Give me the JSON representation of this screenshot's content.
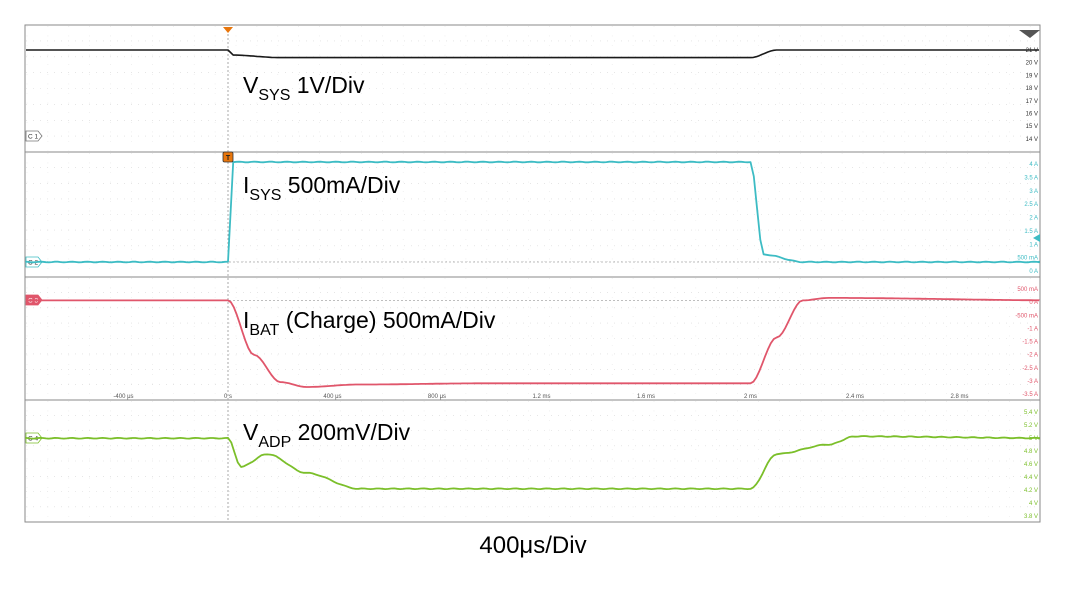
{
  "timebase_label": "400μs/Div",
  "colors": {
    "c1": "#1a1a1a",
    "c2": "#3dbcc4",
    "c3": "#e0566b",
    "c4": "#7bbf2a",
    "trigger": "#e8760c",
    "grid": "#d8d8d8",
    "frame": "#8a8a8a"
  },
  "chart_data": [
    {
      "type": "line",
      "channel": "C1",
      "label": {
        "main": "V",
        "sub": "SYS",
        "rest": " 1V/Div"
      },
      "scale_labels": [
        "21 V",
        "20 V",
        "19 V",
        "18 V",
        "17 V",
        "16 V",
        "15 V",
        "14 V"
      ],
      "x": [
        "-0.8 ms",
        "0 s",
        "0.02 ms",
        "0.2 ms",
        "1.0 ms",
        "2.0 ms",
        "2.1 ms",
        "3.2 ms"
      ],
      "series": [
        {
          "values": [
            21.0,
            21.0,
            20.6,
            20.4,
            20.4,
            20.4,
            21.0,
            21.0
          ]
        }
      ]
    },
    {
      "type": "line",
      "channel": "C2",
      "label": {
        "main": "I",
        "sub": "SYS",
        "rest": " 500mA/Div"
      },
      "scale_labels": [
        "4 A",
        "3.5 A",
        "3 A",
        "2.5 A",
        "2 A",
        "1.5 A",
        "1 A",
        "500 mA",
        "0 A"
      ],
      "x": [
        "-0.8 ms",
        "0 s",
        "0.02 ms",
        "0.1 ms",
        "1.0 ms",
        "2.0 ms",
        "2.05 ms",
        "2.2 ms",
        "3.2 ms"
      ],
      "series": [
        {
          "values": [
            0.0,
            0.0,
            4.0,
            4.0,
            4.0,
            4.0,
            0.3,
            0.0,
            0.0
          ]
        }
      ]
    },
    {
      "type": "line",
      "channel": "C3",
      "label": {
        "main": "I",
        "sub": "BAT",
        "rest": " (Charge) 500mA/Div"
      },
      "scale_labels": [
        "500 mA",
        "0 A",
        "-500 mA",
        "-1 A",
        "-1.5 A",
        "-2 A",
        "-2.5 A",
        "-3 A",
        "-3.5 A"
      ],
      "x_tick_labels": [
        "-400 μs",
        "0 s",
        "400 μs",
        "800 μs",
        "1.2 ms",
        "1.6 ms",
        "2 ms",
        "2.4 ms",
        "2.8 ms"
      ],
      "x": [
        "-0.8 ms",
        "0 s",
        "0.1 ms",
        "0.2 ms",
        "0.3 ms",
        "0.5 ms",
        "1.0 ms",
        "2.0 ms",
        "2.1 ms",
        "2.2 ms",
        "2.3 ms",
        "3.2 ms"
      ],
      "series": [
        {
          "values": [
            0.0,
            0.0,
            -2.2,
            -3.3,
            -3.5,
            -3.4,
            -3.35,
            -3.35,
            -1.5,
            0.0,
            0.1,
            0.0
          ]
        }
      ]
    },
    {
      "type": "line",
      "channel": "C4",
      "label": {
        "main": "V",
        "sub": "ADP",
        "rest": " 200mV/Div"
      },
      "scale_labels": [
        "5.4 V",
        "5.2 V",
        "5 V",
        "4.8 V",
        "4.6 V",
        "4.4 V",
        "4.2 V",
        "4 V",
        "3.8 V"
      ],
      "x": [
        "-0.8 ms",
        "0 s",
        "0.05 ms",
        "0.15 ms",
        "0.3 ms",
        "0.5 ms",
        "1.0 ms",
        "2.0 ms",
        "2.1 ms",
        "2.3 ms",
        "2.4 ms",
        "3.2 ms"
      ],
      "series": [
        {
          "values": [
            5.0,
            5.0,
            4.55,
            4.75,
            4.45,
            4.2,
            4.2,
            4.2,
            4.75,
            4.9,
            5.03,
            5.0
          ]
        }
      ]
    }
  ]
}
